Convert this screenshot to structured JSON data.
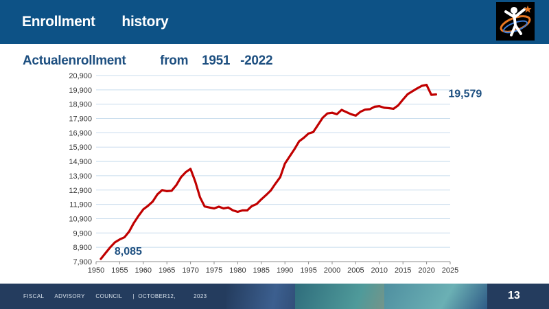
{
  "header": {
    "title": "Enrollment       history"
  },
  "subtitle": "Actualenrollment          from    1951   -2022",
  "footer": {
    "text": "FISCAL      ADVISORY      COUNCIL      |  OCTOBER12,          2023",
    "page_number": "13"
  },
  "colors": {
    "header_bg": "#0d5286",
    "line": "#c00000",
    "label": "#1d4f80",
    "logo_accent": "#e87722"
  },
  "icons": {
    "logo": "dancing-figure-logo-icon"
  },
  "chart_data": {
    "type": "line",
    "x": [
      1951,
      1952,
      1953,
      1954,
      1955,
      1956,
      1957,
      1958,
      1959,
      1960,
      1961,
      1962,
      1963,
      1964,
      1965,
      1966,
      1967,
      1968,
      1969,
      1970,
      1971,
      1972,
      1973,
      1974,
      1975,
      1976,
      1977,
      1978,
      1979,
      1980,
      1981,
      1982,
      1983,
      1984,
      1985,
      1986,
      1987,
      1988,
      1989,
      1990,
      1991,
      1992,
      1993,
      1994,
      1995,
      1996,
      1997,
      1998,
      1999,
      2000,
      2001,
      2002,
      2003,
      2004,
      2005,
      2006,
      2007,
      2008,
      2009,
      2010,
      2011,
      2012,
      2013,
      2014,
      2015,
      2016,
      2017,
      2018,
      2019,
      2020,
      2021,
      2022
    ],
    "values": [
      8085,
      8500,
      8900,
      9250,
      9450,
      9600,
      10000,
      10600,
      11100,
      11550,
      11800,
      12100,
      12600,
      12900,
      12820,
      12850,
      13250,
      13800,
      14150,
      14380,
      13500,
      12400,
      11750,
      11680,
      11620,
      11740,
      11620,
      11680,
      11480,
      11380,
      11480,
      11480,
      11780,
      11920,
      12250,
      12550,
      12870,
      13350,
      13800,
      14750,
      15250,
      15750,
      16300,
      16550,
      16850,
      16950,
      17450,
      17950,
      18250,
      18300,
      18200,
      18500,
      18350,
      18200,
      18100,
      18370,
      18520,
      18550,
      18720,
      18760,
      18650,
      18620,
      18580,
      18820,
      19220,
      19600,
      19800,
      20000,
      20180,
      20250,
      19550,
      19579
    ],
    "xlabel": "",
    "ylabel": "",
    "xlim": [
      1950,
      2025
    ],
    "ylim": [
      7900,
      20900
    ],
    "x_ticks": [
      "1950",
      "1955",
      "1960",
      "1965",
      "1970",
      "1975",
      "1980",
      "1985",
      "1990",
      "1995",
      "2000",
      "2005",
      "2010",
      "2015",
      "2020",
      "2025"
    ],
    "y_ticks": [
      "7,900",
      "8,900",
      "9,900",
      "10,900",
      "11,900",
      "12,900",
      "13,900",
      "14,900",
      "15,900",
      "16,900",
      "17,900",
      "18,900",
      "19,900",
      "20,900"
    ],
    "grid": true,
    "annotations": [
      {
        "text": "8,085",
        "x": 1951,
        "y": 8085
      },
      {
        "text": "19,579",
        "x": 2022,
        "y": 19579
      }
    ]
  }
}
